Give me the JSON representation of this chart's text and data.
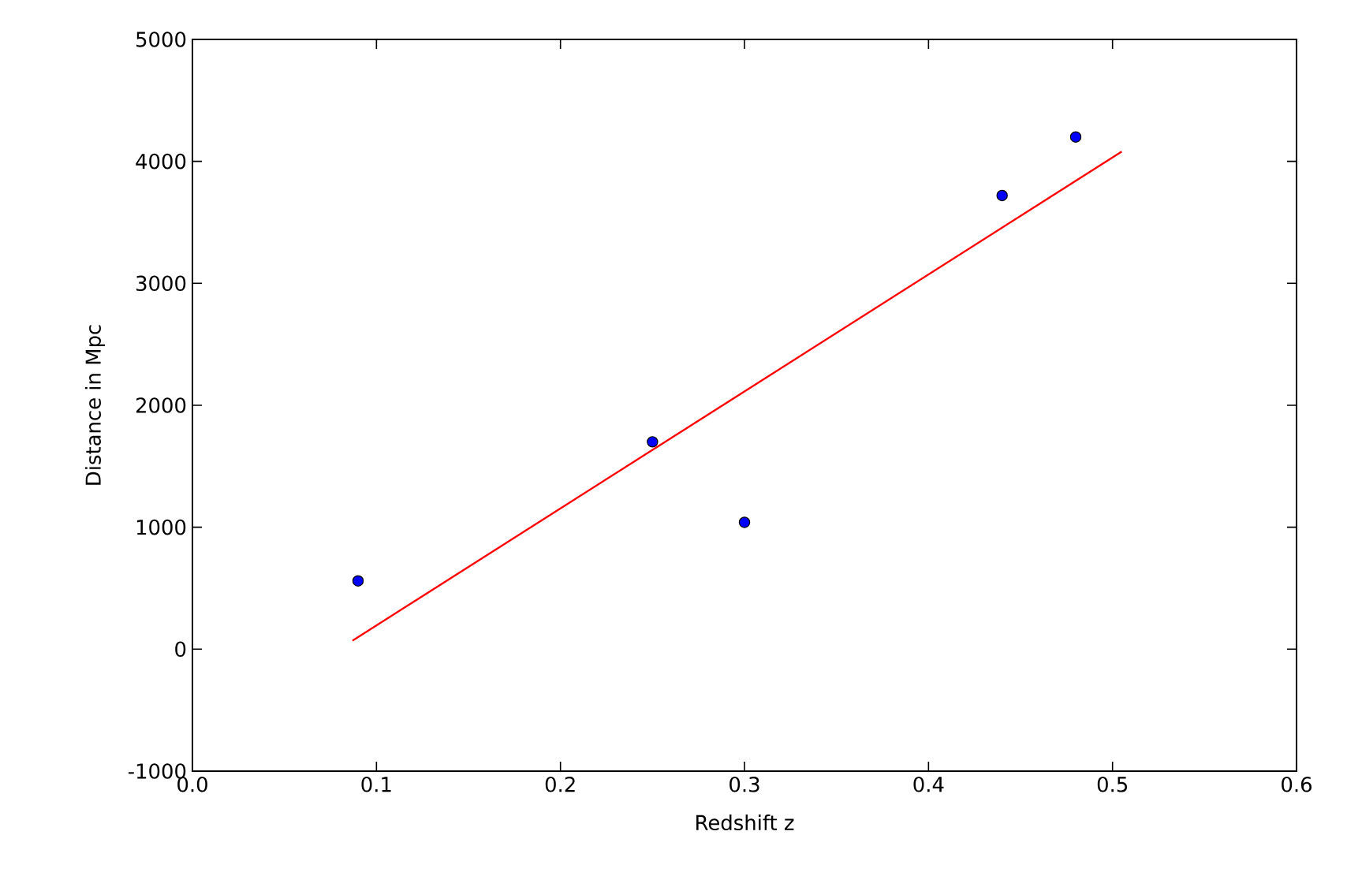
{
  "chart_data": {
    "type": "scatter",
    "xlabel": "Redshift z",
    "ylabel": "Distance in Mpc",
    "xlim": [
      0.0,
      0.6
    ],
    "ylim": [
      -1000,
      5000
    ],
    "xticks": [
      {
        "value": 0.0,
        "label": "0.0"
      },
      0.1,
      0.2,
      0.3,
      0.4,
      0.5,
      0.6
    ],
    "yticks": [
      -1000,
      0,
      1000,
      2000,
      3000,
      4000,
      5000
    ],
    "grid": false,
    "series": [
      {
        "color": "#0000ff",
        "marker": "circle",
        "x": [
          0.09,
          0.25,
          0.3,
          0.44,
          0.48
        ],
        "values": [
          560,
          1700,
          1040,
          3720,
          4200
        ]
      },
      {
        "type": "line",
        "color": "#ff0000",
        "marker": "none",
        "x": [
          0.087,
          0.505
        ],
        "values": [
          70,
          4080
        ]
      }
    ]
  }
}
